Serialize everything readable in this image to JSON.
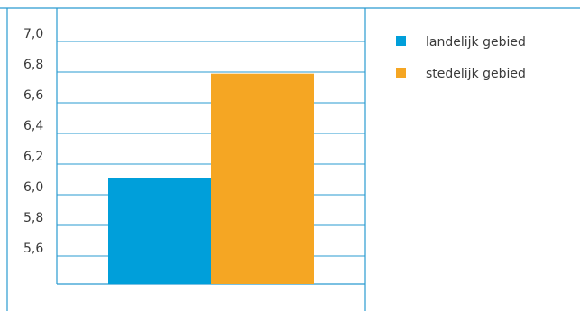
{
  "chart_data": {
    "type": "bar",
    "categories": [
      "landelijk gebied",
      "stedelijk gebied"
    ],
    "series": [
      {
        "name": "landelijk gebied",
        "values": [
          6.11,
          null
        ],
        "color": "#009fda"
      },
      {
        "name": "stedelijk gebied",
        "values": [
          null,
          6.79
        ],
        "color": "#f5a623"
      }
    ],
    "values": [
      6.11,
      6.79
    ],
    "colors": [
      "#009fda",
      "#f5a623"
    ],
    "ylim": [
      5.4,
      7.0
    ],
    "yticks": [
      5.6,
      5.8,
      6.0,
      6.2,
      6.4,
      6.6,
      6.8,
      7.0
    ],
    "ytick_labels": [
      "5,6",
      "5,8",
      "6,0",
      "6,2",
      "6,4",
      "6,6",
      "6,8",
      "7,0"
    ],
    "grid": true,
    "legend_position": "right",
    "frame_color": "#2a9bd0",
    "grid_color": "#2a9bd0"
  }
}
